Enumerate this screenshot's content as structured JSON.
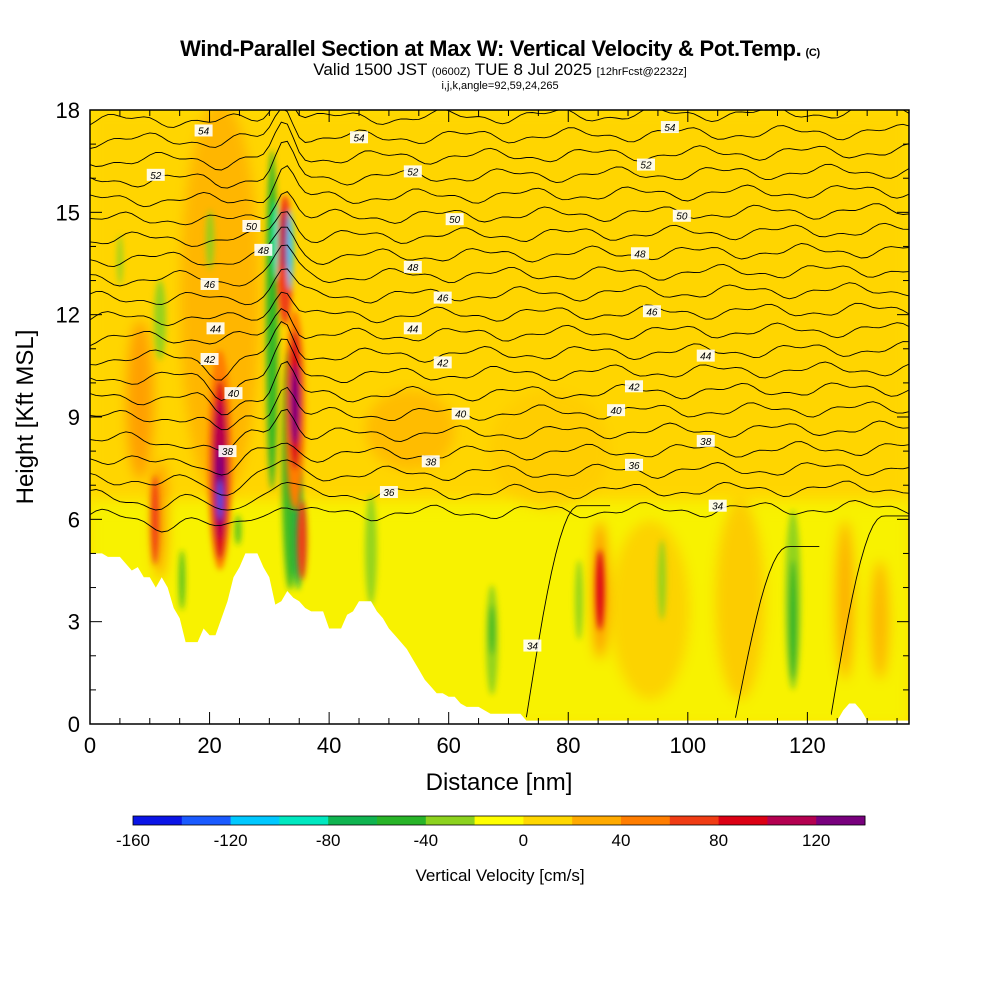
{
  "title": {
    "line1": "Wind-Parallel Section at Max W: Vertical Velocity & Pot.Temp.",
    "copyright": "(C)",
    "line2_valid": "Valid 1500 JST",
    "line2_utc": "(0600Z)",
    "line2_date": "TUE 8 Jul 2025",
    "line2_fcst": "[12hrFcst@2232z]",
    "line3": "i,j,k,angle=92,59,24,265"
  },
  "chart_data": {
    "type": "heatmap",
    "xlabel": "Distance [nm]",
    "ylabel": "Height [Kft MSL]",
    "xlim": [
      0,
      137
    ],
    "ylim": [
      0,
      18
    ],
    "xticks": [
      0,
      20,
      40,
      60,
      80,
      100,
      120
    ],
    "yticks": [
      0,
      3,
      6,
      9,
      12,
      15,
      18
    ],
    "colorbar": {
      "label": "Vertical Velocity [cm/s]",
      "ticks": [
        -160,
        -120,
        -80,
        -40,
        0,
        40,
        80,
        120
      ],
      "min": -160,
      "max": 140,
      "step": 20,
      "colors": [
        "#0a14e6",
        "#1a5aff",
        "#00c8ff",
        "#00e8c0",
        "#10b450",
        "#28b428",
        "#8cd21e",
        "#ffff00",
        "#ffd700",
        "#ffaa00",
        "#ff7d00",
        "#f03c14",
        "#dc0014",
        "#b40050",
        "#78007d"
      ]
    },
    "theta_contours_kelvin_label": [
      {
        "x": 23,
        "y": 8.0,
        "label": "38"
      },
      {
        "x": 50,
        "y": 6.8,
        "label": "36"
      },
      {
        "x": 57,
        "y": 7.7,
        "label": "38"
      },
      {
        "x": 91,
        "y": 7.6,
        "label": "36"
      },
      {
        "x": 103,
        "y": 8.3,
        "label": "38"
      },
      {
        "x": 105,
        "y": 6.4,
        "label": "34"
      },
      {
        "x": 74,
        "y": 2.3,
        "label": "34"
      },
      {
        "x": 24,
        "y": 9.7,
        "label": "40"
      },
      {
        "x": 62,
        "y": 9.1,
        "label": "40"
      },
      {
        "x": 88,
        "y": 9.2,
        "label": "40"
      },
      {
        "x": 20,
        "y": 10.7,
        "label": "42"
      },
      {
        "x": 59,
        "y": 10.6,
        "label": "42"
      },
      {
        "x": 91,
        "y": 9.9,
        "label": "42"
      },
      {
        "x": 21,
        "y": 11.6,
        "label": "44"
      },
      {
        "x": 54,
        "y": 11.6,
        "label": "44"
      },
      {
        "x": 103,
        "y": 10.8,
        "label": "44"
      },
      {
        "x": 20,
        "y": 12.9,
        "label": "46"
      },
      {
        "x": 59,
        "y": 12.5,
        "label": "46"
      },
      {
        "x": 94,
        "y": 12.1,
        "label": "46"
      },
      {
        "x": 29,
        "y": 13.9,
        "label": "48"
      },
      {
        "x": 54,
        "y": 13.4,
        "label": "48"
      },
      {
        "x": 92,
        "y": 13.8,
        "label": "48"
      },
      {
        "x": 27,
        "y": 14.6,
        "label": "50"
      },
      {
        "x": 61,
        "y": 14.8,
        "label": "50"
      },
      {
        "x": 99,
        "y": 14.9,
        "label": "50"
      },
      {
        "x": 11,
        "y": 16.1,
        "label": "52"
      },
      {
        "x": 54,
        "y": 16.2,
        "label": "52"
      },
      {
        "x": 93,
        "y": 16.4,
        "label": "52"
      },
      {
        "x": 19,
        "y": 17.4,
        "label": "54"
      },
      {
        "x": 45,
        "y": 17.2,
        "label": "54"
      },
      {
        "x": 97,
        "y": 17.5,
        "label": "54"
      }
    ],
    "terrain_height_kft": [
      [
        0,
        5.0
      ],
      [
        2,
        5.0
      ],
      [
        3,
        4.9
      ],
      [
        5,
        4.9
      ],
      [
        6,
        4.7
      ],
      [
        7,
        4.5
      ],
      [
        8,
        4.6
      ],
      [
        9,
        4.3
      ],
      [
        10,
        4.3
      ],
      [
        11,
        4.0
      ],
      [
        12,
        4.3
      ],
      [
        13,
        4.0
      ],
      [
        14,
        3.4
      ],
      [
        15,
        3.1
      ],
      [
        16,
        2.4
      ],
      [
        18,
        2.4
      ],
      [
        19,
        2.8
      ],
      [
        20,
        2.6
      ],
      [
        21,
        2.6
      ],
      [
        22,
        3.1
      ],
      [
        23,
        3.6
      ],
      [
        24,
        4.3
      ],
      [
        25,
        4.6
      ],
      [
        26,
        5.0
      ],
      [
        28,
        5.0
      ],
      [
        29,
        4.6
      ],
      [
        30,
        4.3
      ],
      [
        31,
        3.5
      ],
      [
        32,
        3.6
      ],
      [
        33,
        3.9
      ],
      [
        34,
        3.7
      ],
      [
        35,
        3.6
      ],
      [
        36,
        3.4
      ],
      [
        37,
        3.3
      ],
      [
        39,
        3.3
      ],
      [
        40,
        2.8
      ],
      [
        42,
        2.8
      ],
      [
        43,
        3.2
      ],
      [
        44,
        3.3
      ],
      [
        45,
        3.6
      ],
      [
        47,
        3.6
      ],
      [
        48,
        3.3
      ],
      [
        49,
        3.1
      ],
      [
        50,
        2.8
      ],
      [
        51,
        2.6
      ],
      [
        52,
        2.4
      ],
      [
        53,
        2.2
      ],
      [
        54,
        1.9
      ],
      [
        55,
        1.6
      ],
      [
        56,
        1.3
      ],
      [
        57,
        1.1
      ],
      [
        58,
        0.9
      ],
      [
        59,
        0.9
      ],
      [
        60,
        0.8
      ],
      [
        61,
        0.8
      ],
      [
        62,
        0.6
      ],
      [
        63,
        0.5
      ],
      [
        65,
        0.5
      ],
      [
        66,
        0.4
      ],
      [
        67,
        0.3
      ],
      [
        72,
        0.3
      ],
      [
        73,
        0.1
      ],
      [
        125,
        0.1
      ],
      [
        126,
        0.4
      ],
      [
        127,
        0.6
      ],
      [
        128,
        0.6
      ],
      [
        129,
        0.4
      ],
      [
        130,
        0.1
      ],
      [
        137,
        0.1
      ]
    ]
  }
}
